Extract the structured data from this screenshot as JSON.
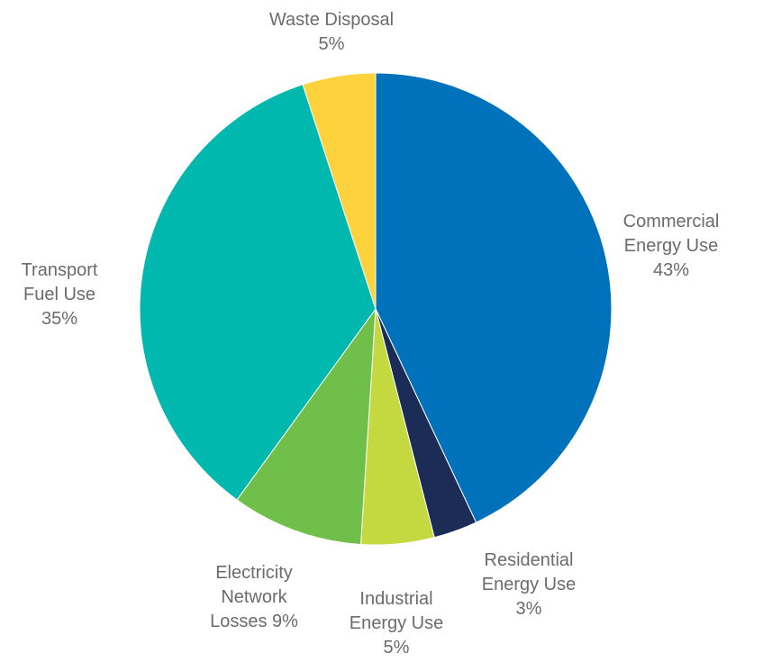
{
  "chart_data": {
    "type": "pie",
    "title": "",
    "start_angle_deg": 0,
    "direction": "clockwise",
    "slices": [
      {
        "label_lines": [
          "Commercial",
          "Energy Use",
          "43%"
        ],
        "value": 43,
        "color": "#0072bc"
      },
      {
        "label_lines": [
          "Residential",
          "Energy Use",
          "3%"
        ],
        "value": 3,
        "color": "#1b2d57"
      },
      {
        "label_lines": [
          "Industrial",
          "Energy Use",
          "5%"
        ],
        "value": 5,
        "color": "#c4d93f"
      },
      {
        "label_lines": [
          "Electricity",
          "Network",
          "Losses 9%"
        ],
        "value": 9,
        "color": "#6fbf4a"
      },
      {
        "label_lines": [
          "Transport",
          "Fuel Use",
          "35%"
        ],
        "value": 35,
        "color": "#00b8ad"
      },
      {
        "label_lines": [
          "Waste Disposal",
          "5%"
        ],
        "value": 5,
        "color": "#fdd23c"
      }
    ]
  }
}
